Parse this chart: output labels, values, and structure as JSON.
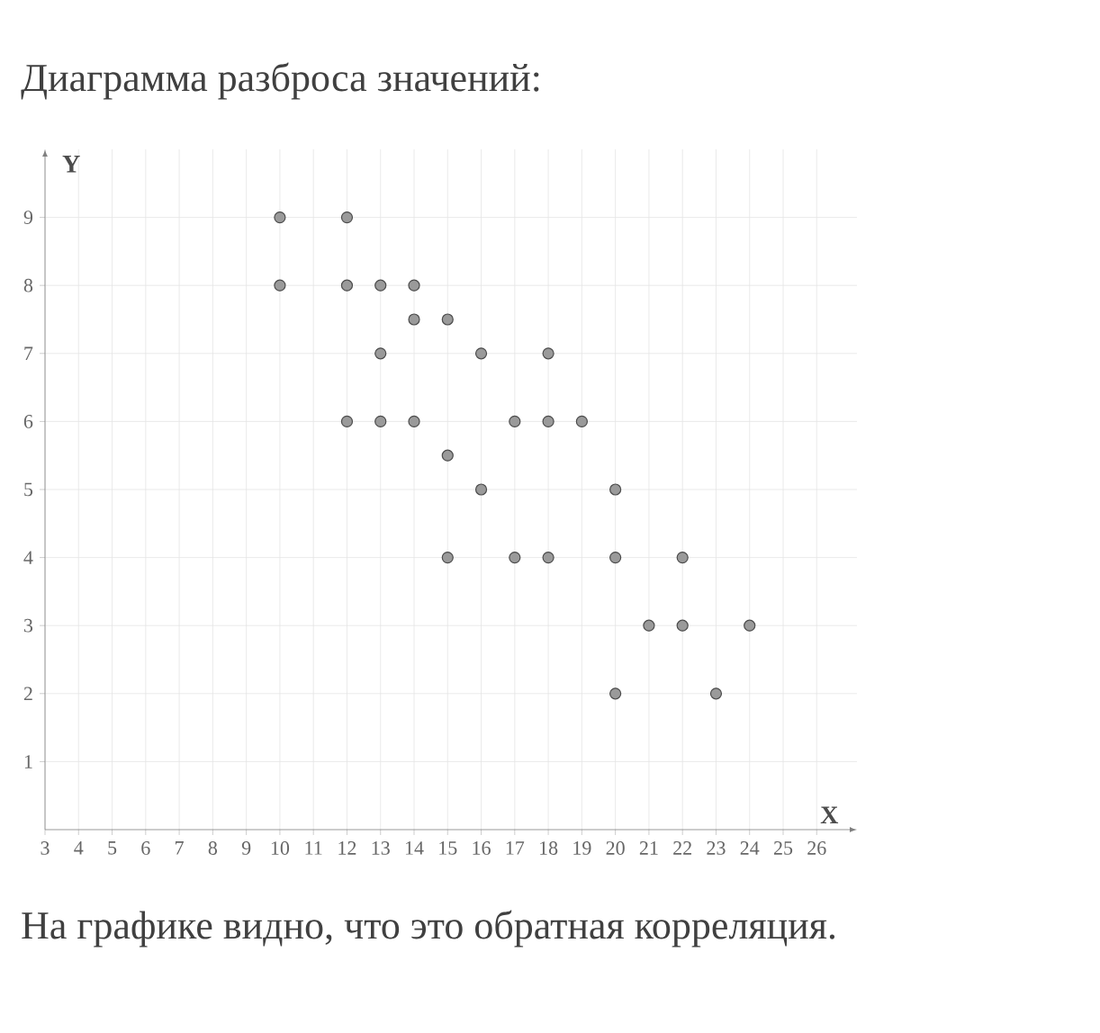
{
  "chart_data": {
    "type": "scatter",
    "title": "Диаграмма разброса значений:",
    "xlabel": "X",
    "ylabel": "Y",
    "annotations": [
      "На графике видно, что это обратная корреляция."
    ],
    "x": [
      10,
      12,
      10,
      12,
      13,
      14,
      14,
      15,
      13,
      16,
      18,
      12,
      13,
      14,
      17,
      18,
      19,
      15,
      16,
      20,
      15,
      17,
      18,
      20,
      22,
      21,
      22,
      24,
      20,
      23
    ],
    "values": [
      9,
      9,
      8,
      8,
      8,
      8,
      7.5,
      7.5,
      7,
      7,
      7,
      6,
      6,
      6,
      6,
      6,
      6,
      5.5,
      5,
      5,
      4,
      4,
      4,
      4,
      4,
      3,
      3,
      3,
      2,
      2
    ],
    "color": "#9a9a9a",
    "marker": "circle",
    "grid": true,
    "xlim": [
      3,
      27.2
    ],
    "ylim": [
      0,
      10
    ],
    "xticks": [
      3,
      4,
      5,
      6,
      7,
      8,
      9,
      10,
      11,
      12,
      13,
      14,
      15,
      16,
      17,
      18,
      19,
      20,
      21,
      22,
      23,
      24,
      25,
      26
    ],
    "yticks": [
      1,
      2,
      3,
      4,
      5,
      6,
      7,
      8,
      9
    ]
  }
}
